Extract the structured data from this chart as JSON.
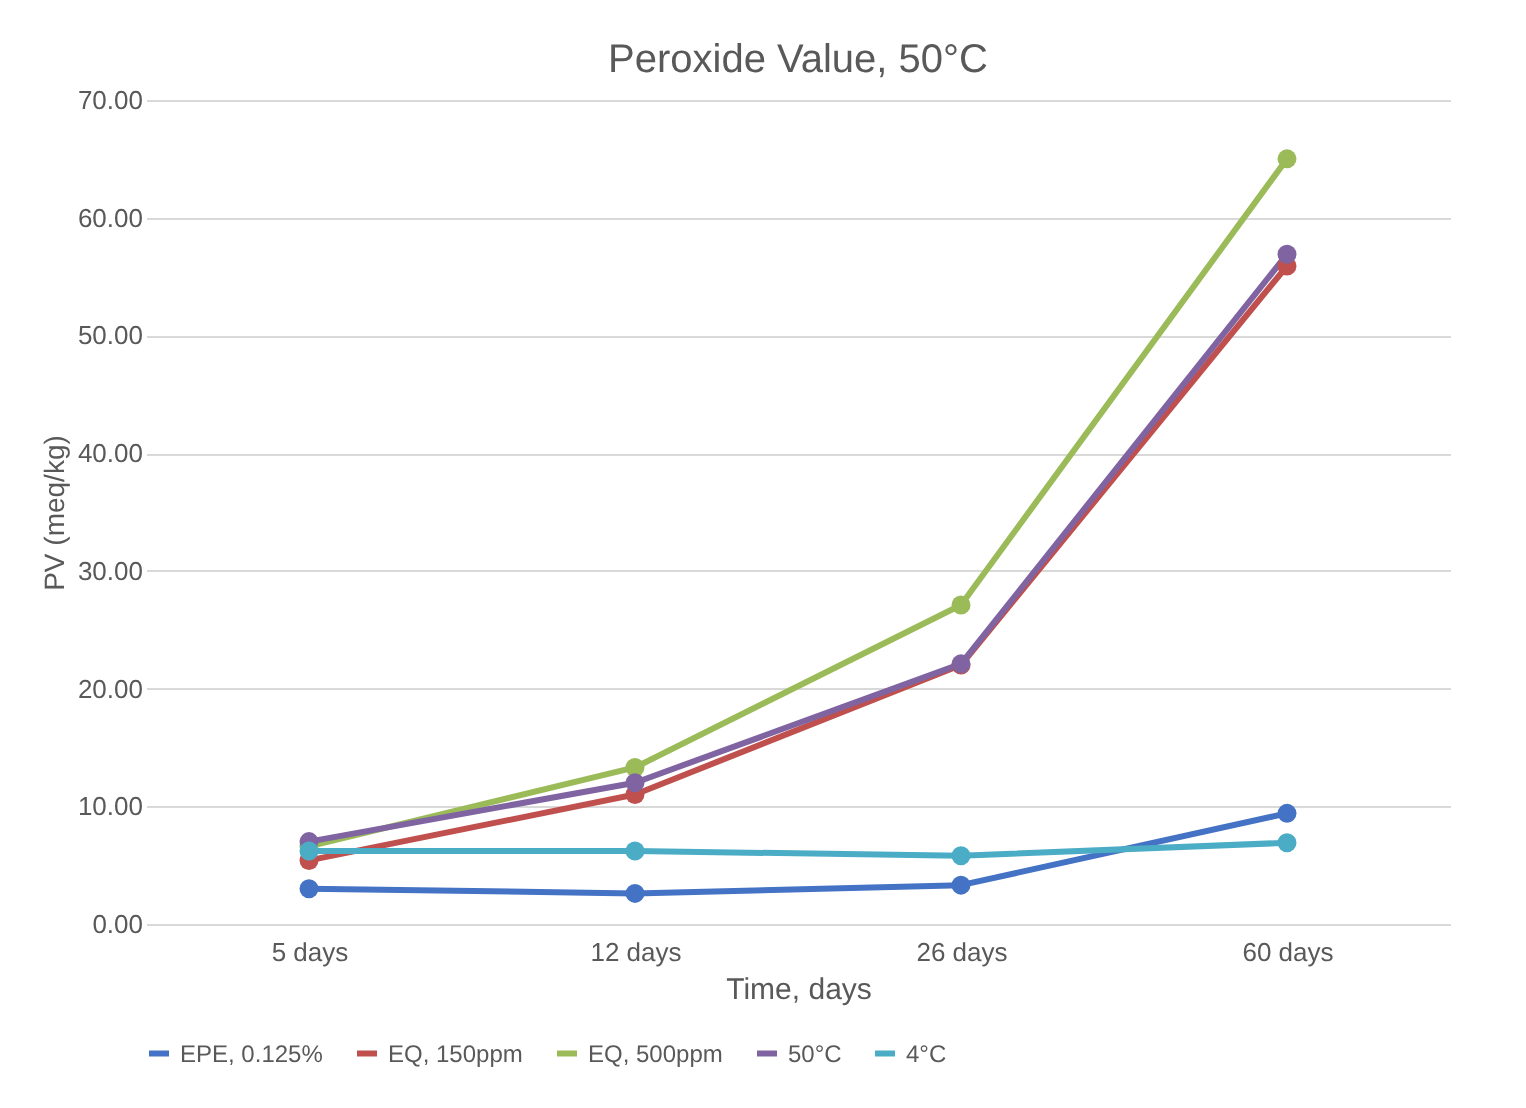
{
  "chart_data": {
    "type": "line",
    "title": "Peroxide Value, 50°C",
    "xlabel": "Time, days",
    "ylabel": "PV (meq/kg)",
    "categories": [
      "5 days",
      "12 days",
      "26 days",
      "60 days"
    ],
    "series": [
      {
        "name": "EPE, 0.125%",
        "color": "#4472c4",
        "values": [
          3.0,
          2.6,
          3.3,
          9.4
        ]
      },
      {
        "name": "EQ, 150ppm",
        "color": "#c0504d",
        "values": [
          5.4,
          11.0,
          22.0,
          55.9
        ]
      },
      {
        "name": "EQ, 500ppm",
        "color": "#9bbb59",
        "values": [
          6.6,
          13.3,
          27.1,
          65.0
        ]
      },
      {
        "name": "50°C",
        "color": "#8064a2",
        "values": [
          7.0,
          12.0,
          22.1,
          56.9
        ]
      },
      {
        "name": "4°C",
        "color": "#4bacc6",
        "values": [
          6.2,
          6.2,
          5.8,
          6.9
        ]
      }
    ],
    "ylim": [
      0,
      70
    ],
    "yticks": [
      {
        "value": 0,
        "label": "0.00"
      },
      {
        "value": 10,
        "label": "10.00"
      },
      {
        "value": 20,
        "label": "20.00"
      },
      {
        "value": 30,
        "label": "30.00"
      },
      {
        "value": 40,
        "label": "40.00"
      },
      {
        "value": 50,
        "label": "50.00"
      },
      {
        "value": 60,
        "label": "60.00"
      },
      {
        "value": 70,
        "label": "70.00"
      }
    ],
    "grid": "y",
    "legend": "bottom",
    "marker": "circle",
    "line_style": "solid"
  }
}
